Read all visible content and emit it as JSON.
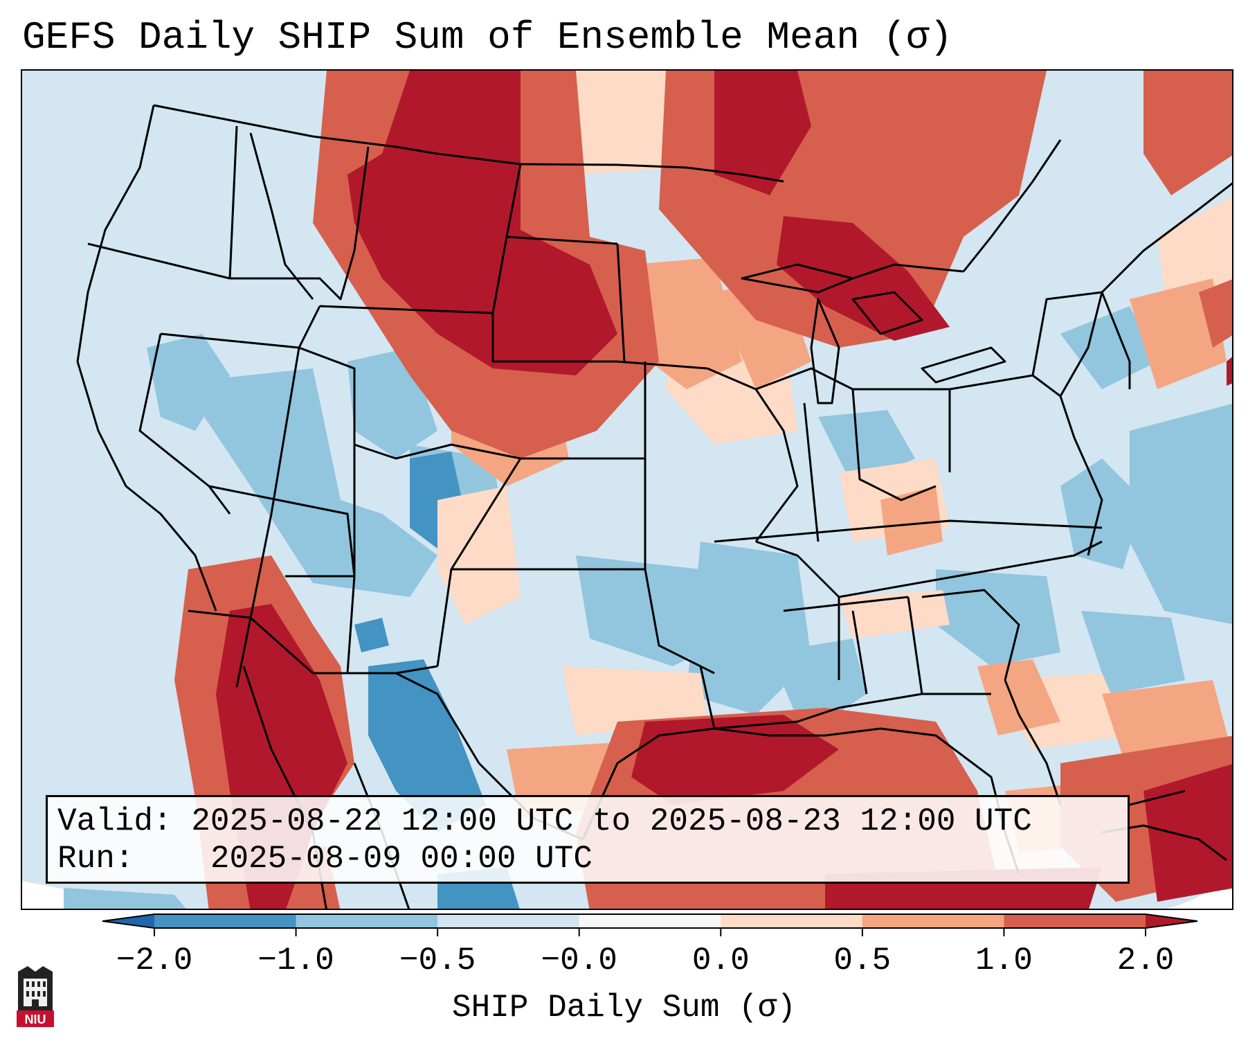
{
  "title": "GEFS Daily SHIP Sum of Ensemble Mean (σ)",
  "info": {
    "valid_label": "Valid:",
    "valid_value": "2025-08-22 12:00 UTC to 2025-08-23 12:00 UTC",
    "run_label": "Run:",
    "run_value": "2025-08-09 00:00 UTC"
  },
  "colorbar": {
    "label": "SHIP Daily Sum (σ)",
    "ticks": [
      "−2.0",
      "−1.0",
      "−0.5",
      "−0.0",
      "0.0",
      "0.5",
      "1.0",
      "2.0"
    ],
    "bins": [
      {
        "range": "< -2.0",
        "color": "#2166ac"
      },
      {
        "range": "-2.0 to -1.0",
        "color": "#4393c3"
      },
      {
        "range": "-1.0 to -0.5",
        "color": "#92c5de"
      },
      {
        "range": "-0.5 to -0.0",
        "color": "#d1e5f0"
      },
      {
        "range": "-0.0 to 0.0",
        "color": "#f7f7f7"
      },
      {
        "range": "0.0 to 0.5",
        "color": "#fddbc7"
      },
      {
        "range": "0.5 to 1.0",
        "color": "#f4a582"
      },
      {
        "range": "1.0 to 2.0",
        "color": "#d6604d"
      },
      {
        "range": "> 2.0",
        "color": "#b2182b"
      }
    ]
  },
  "logo_text": "NIU"
}
